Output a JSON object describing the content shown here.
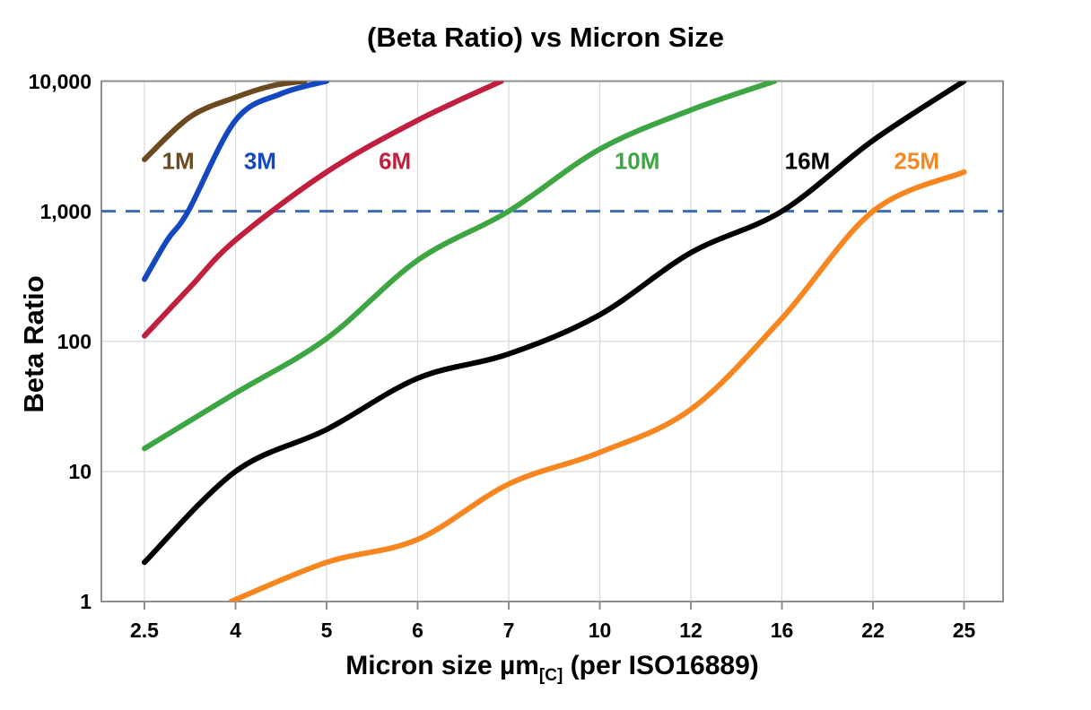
{
  "title": "(Beta Ratio) vs Micron Size",
  "axes": {
    "y_label": "Beta Ratio",
    "x_label_prefix": "Micron size µm",
    "x_label_sub": "[C]",
    "x_label_suffix": " (per ISO16889)",
    "y_ticks": [
      "10,000",
      "1,000",
      "100",
      "10",
      "1"
    ],
    "x_ticks": [
      "2.5",
      "4",
      "5",
      "6",
      "7",
      "10",
      "12",
      "16",
      "22",
      "25"
    ]
  },
  "colors": {
    "grid": "#d9d9d9",
    "border": "#8f8f8f",
    "tick": "#8f8f8f",
    "reference_dashed": "#3f6cb3",
    "background": "#ffffff"
  },
  "chart_data": {
    "type": "line",
    "title": "(Beta Ratio) vs Micron Size",
    "xlabel": "Micron size µm[C] (per ISO16889)",
    "ylabel": "Beta Ratio",
    "x_scale": "categorical",
    "y_scale": "log",
    "ylim": [
      1,
      10000
    ],
    "grid": true,
    "categories": [
      "2.5",
      "4",
      "5",
      "6",
      "7",
      "10",
      "12",
      "16",
      "22",
      "25"
    ],
    "reference_line": {
      "y": 1000,
      "style": "dashed",
      "color": "#3f6cb3"
    },
    "series": [
      {
        "name": "1M",
        "color": "#6b4a1f",
        "points": [
          [
            0,
            2500
          ],
          [
            0.5,
            5300
          ],
          [
            1,
            7500
          ],
          [
            1.4,
            9200
          ],
          [
            1.76,
            10000
          ]
        ]
      },
      {
        "name": "3M",
        "color": "#1348c0",
        "points": [
          [
            0,
            300
          ],
          [
            0.25,
            600
          ],
          [
            0.48,
            1000
          ],
          [
            1,
            5000
          ],
          [
            1.5,
            8000
          ],
          [
            2,
            10000
          ]
        ]
      },
      {
        "name": "6M",
        "color": "#c01f3d",
        "points": [
          [
            0,
            110
          ],
          [
            0.5,
            260
          ],
          [
            1,
            600
          ],
          [
            2,
            2000
          ],
          [
            3,
            5000
          ],
          [
            3.92,
            10000
          ]
        ]
      },
      {
        "name": "10M",
        "color": "#3da643",
        "points": [
          [
            0,
            15
          ],
          [
            1,
            40
          ],
          [
            2,
            105
          ],
          [
            3,
            420
          ],
          [
            4,
            1000
          ],
          [
            5,
            3000
          ],
          [
            6,
            6000
          ],
          [
            6.92,
            10000
          ]
        ]
      },
      {
        "name": "16M",
        "color": "#000000",
        "points": [
          [
            0,
            2
          ],
          [
            1,
            10
          ],
          [
            2,
            21
          ],
          [
            3,
            52
          ],
          [
            4,
            80
          ],
          [
            5,
            160
          ],
          [
            6,
            480
          ],
          [
            7,
            1000
          ],
          [
            8,
            3500
          ],
          [
            9,
            10000
          ]
        ]
      },
      {
        "name": "25M",
        "color": "#f6861f",
        "points": [
          [
            0.95,
            1
          ],
          [
            2,
            2
          ],
          [
            3,
            3
          ],
          [
            4,
            8
          ],
          [
            5,
            14
          ],
          [
            6,
            30
          ],
          [
            7,
            150
          ],
          [
            8,
            1000
          ],
          [
            9,
            2000
          ]
        ]
      }
    ],
    "series_labels": [
      {
        "text": "1M",
        "color": "#6b4a1f",
        "x": 0.37,
        "y": 2400
      },
      {
        "text": "3M",
        "color": "#1348c0",
        "x": 1.27,
        "y": 2400
      },
      {
        "text": "6M",
        "color": "#c01f3d",
        "x": 2.75,
        "y": 2400
      },
      {
        "text": "10M",
        "color": "#3da643",
        "x": 5.41,
        "y": 2400
      },
      {
        "text": "16M",
        "color": "#000000",
        "x": 7.28,
        "y": 2400
      },
      {
        "text": "25M",
        "color": "#f6861f",
        "x": 8.48,
        "y": 2400
      }
    ]
  }
}
